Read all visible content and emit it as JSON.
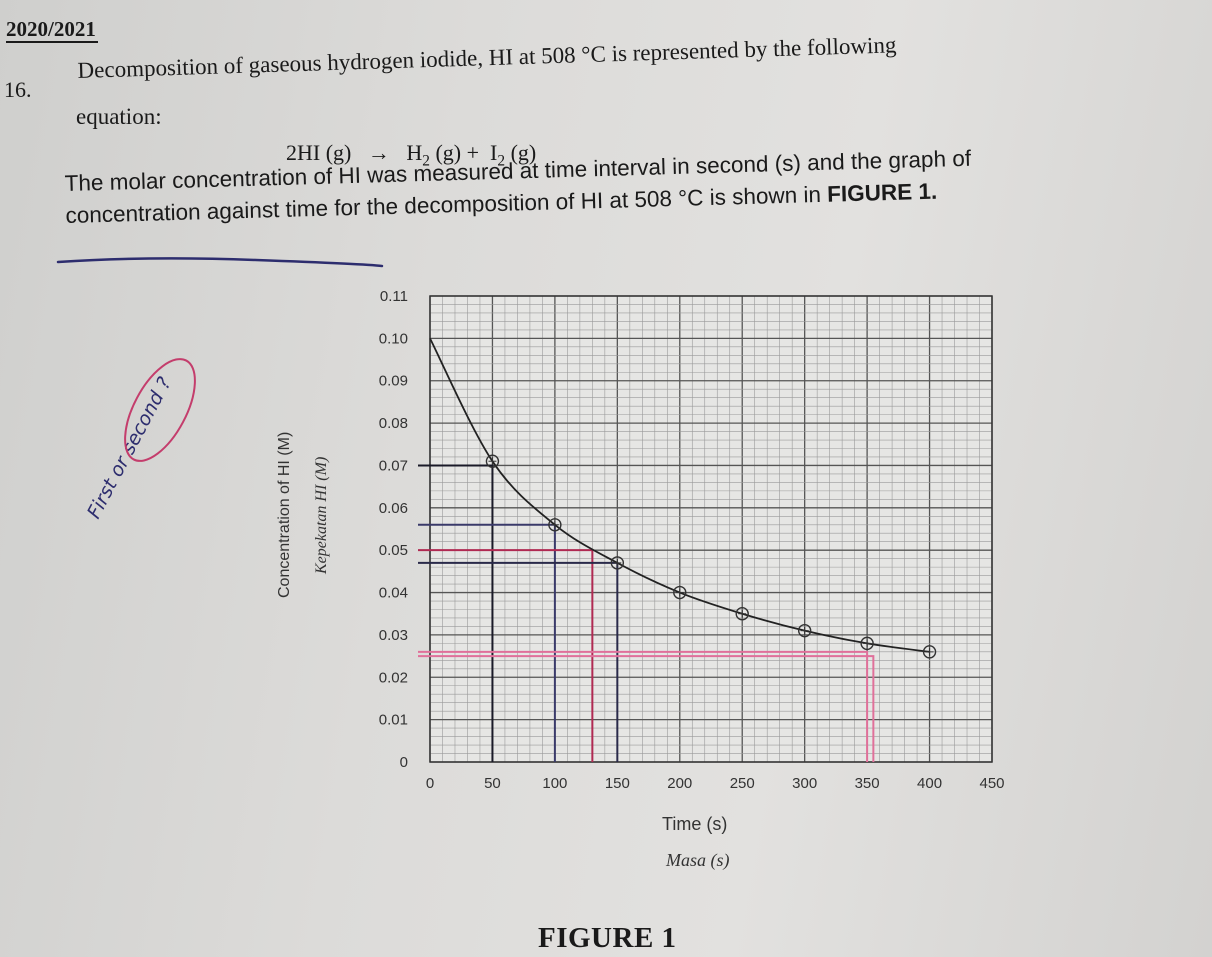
{
  "header": {
    "session": "2020/2021"
  },
  "question": {
    "number": "16.",
    "stem_line1": "Decomposition of gaseous hydrogen iodide, HI at 508 °C is represented by the following",
    "stem_line2": "equation:",
    "equation_left": "2HI (g)",
    "equation_arrow": "→",
    "equation_h2": "H",
    "equation_h2_sub": "2",
    "equation_h2_state": " (g) +",
    "equation_i2": "I",
    "equation_i2_sub": "2",
    "equation_i2_state": " (g)",
    "para_line1": "The molar concentration of HI was measured at time interval in second (s) and the graph of",
    "para_line2_plain": "concentration against time for the decomposition of HI at 508 °C is shown in ",
    "para_line2_bold": "FIGURE 1."
  },
  "annotation": {
    "handwritten": "First or second ?"
  },
  "figure": {
    "caption": "FIGURE 1"
  },
  "chart_data": {
    "type": "line",
    "title": "",
    "xlabel": "Time (s)",
    "xlabel_alt": "Masa (s)",
    "ylabel": "Concentration of HI (M)",
    "ylabel_alt": "Kepekatan HI (M)",
    "xlim": [
      0,
      450
    ],
    "ylim": [
      0,
      0.11
    ],
    "xticks": [
      "0",
      "50",
      "100",
      "150",
      "200",
      "250",
      "300",
      "350",
      "400",
      "450"
    ],
    "yticks": [
      "0",
      "0.01",
      "0.02",
      "0.03",
      "0.04",
      "0.05",
      "0.06",
      "0.07",
      "0.08",
      "0.09",
      "0.10",
      "0.11"
    ],
    "grid": true,
    "series": [
      {
        "x": [
          0,
          50,
          100,
          150,
          200,
          250,
          300,
          350,
          400
        ],
        "y": [
          0.1,
          0.071,
          0.056,
          0.047,
          0.04,
          0.035,
          0.031,
          0.028,
          0.026
        ]
      }
    ],
    "guide_lines": [
      {
        "color": "#1a1a28",
        "y": 0.07,
        "x": 50
      },
      {
        "color": "#3a3a6a",
        "y": 0.056,
        "x": 100
      },
      {
        "color": "#b02a52",
        "y": 0.05,
        "x": 130
      },
      {
        "color": "#2a2a4a",
        "y": 0.047,
        "x": 150
      },
      {
        "color": "#e0709a",
        "y": 0.026,
        "x": 350
      },
      {
        "color": "#e0709a",
        "y": 0.025,
        "x": 355
      }
    ],
    "colors": {
      "curve": "#222222",
      "grid_major": "#555555",
      "grid_minor": "#9a9a9a",
      "ink_blue": "#2d2d6e",
      "ink_pink": "#d96a8e"
    }
  }
}
